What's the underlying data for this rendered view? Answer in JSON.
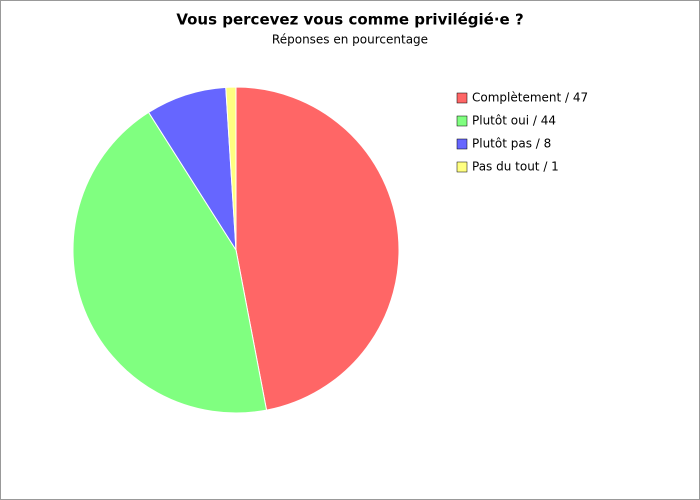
{
  "chart_data": {
    "type": "pie",
    "title": "Vous percevez vous comme privilégié·e ?",
    "subtitle": "Réponses en pourcentage",
    "categories": [
      "Complètement / 47",
      "Plutôt oui / 44",
      "Plutôt pas / 8",
      "Pas du tout / 1"
    ],
    "values": [
      47,
      44,
      8,
      1
    ],
    "colors": [
      "#ff6666",
      "#80ff80",
      "#6666ff",
      "#ffff80"
    ],
    "legend": "right"
  }
}
